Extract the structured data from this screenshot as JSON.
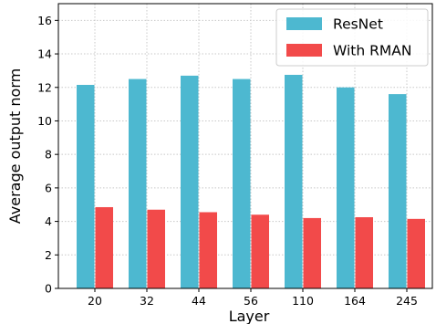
{
  "chart_data": {
    "type": "bar",
    "title": "",
    "xlabel": "Layer",
    "ylabel": "Average output norm",
    "categories": [
      "20",
      "32",
      "44",
      "56",
      "110",
      "164",
      "245"
    ],
    "series": [
      {
        "name": "ResNet",
        "color": "#4db8d0",
        "values": [
          12.15,
          12.5,
          12.7,
          12.5,
          12.75,
          12.0,
          11.6
        ]
      },
      {
        "name": "With RMAN",
        "color": "#f24a4a",
        "values": [
          4.85,
          4.7,
          4.55,
          4.4,
          4.2,
          4.25,
          4.15
        ]
      }
    ],
    "ylim": [
      0,
      17
    ],
    "yticks": [
      0,
      2,
      4,
      6,
      8,
      10,
      12,
      14,
      16
    ],
    "grid": true,
    "legend_position": "top-right"
  }
}
